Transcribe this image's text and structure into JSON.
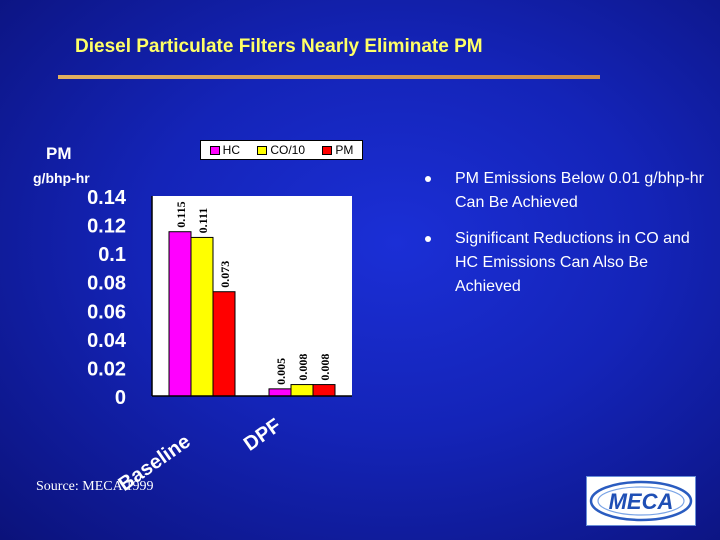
{
  "slide": {
    "title": "Diesel Particulate Filters Nearly Eliminate PM",
    "y_unit_line1": "PM",
    "y_unit_line2": "g/bhp-hr",
    "bullets": [
      "PM Emissions Below 0.01 g/bhp-hr Can Be  Achieved",
      "Significant Reductions in CO and HC Emissions Can Also Be Achieved"
    ],
    "source": "Source: MECA 1999",
    "logo": {
      "text": "MECA",
      "icon": "meca-logo"
    }
  },
  "chart_data": {
    "type": "bar",
    "title": "",
    "xlabel": "",
    "ylabel": "PM g/bhp-hr",
    "categories": [
      "Baseline",
      "DPF"
    ],
    "ylim": [
      0,
      0.14
    ],
    "yticks": [
      "0.14",
      "0.12",
      "0.1",
      "0.08",
      "0.06",
      "0.04",
      "0.02",
      "0"
    ],
    "ytick_values": [
      0.14,
      0.12,
      0.1,
      0.08,
      0.06,
      0.04,
      0.02,
      0
    ],
    "grid": false,
    "legend_position": "top",
    "series": [
      {
        "name": "HC",
        "color": "#ff00ff",
        "values": [
          0.115,
          0.005
        ],
        "labels": [
          "0.115",
          "0.005"
        ]
      },
      {
        "name": "CO/10",
        "color": "#ffff00",
        "values": [
          0.111,
          0.008
        ],
        "labels": [
          "0.111",
          "0.008"
        ]
      },
      {
        "name": "PM",
        "color": "#ff0000",
        "values": [
          0.073,
          0.008
        ],
        "labels": [
          "0.073",
          "0.008"
        ]
      }
    ]
  }
}
